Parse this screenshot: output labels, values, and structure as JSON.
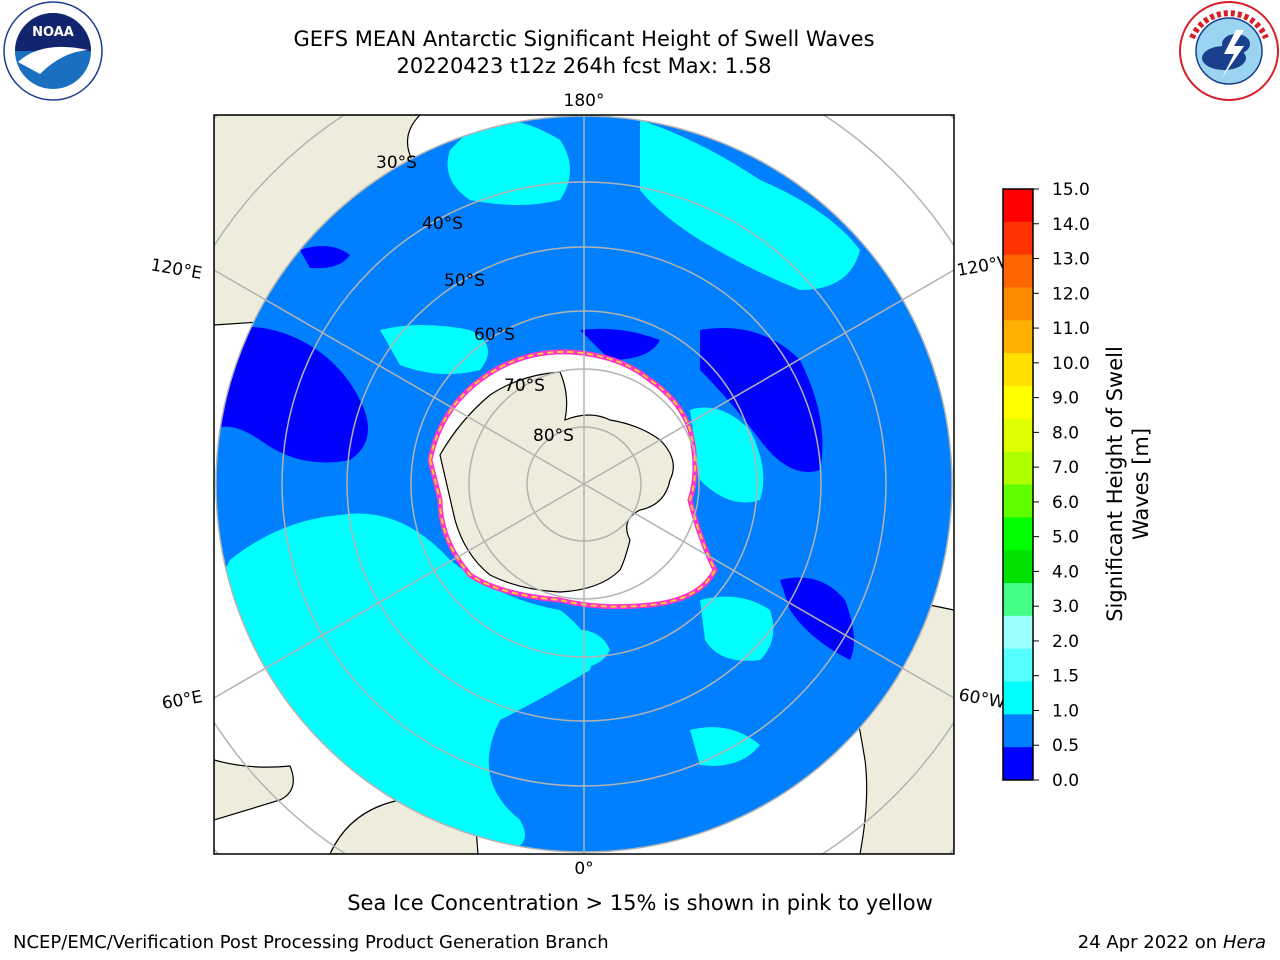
{
  "title": {
    "line1": "GEFS MEAN Antarctic Significant Height of Swell Waves",
    "line2": "20220423 t12z 264h fcst   Max: 1.58"
  },
  "logos": {
    "noaa": {
      "text": "NOAA",
      "ring_text": "NATIONAL OCEANIC AND ATMOSPHERIC ADMINISTRATION · U.S. DEPARTMENT OF COMMERCE"
    },
    "nws": {
      "ring_text": "NATIONAL WEATHER SERVICE"
    }
  },
  "map": {
    "projection": "south-polar-stereographic",
    "longitude_labels": {
      "top": "180°",
      "bottom": "0°",
      "left_upper": "120°E",
      "left_lower": "60°E",
      "right_upper": "120°W",
      "right_lower": "60°W"
    },
    "latitude_labels": [
      "30°S",
      "40°S",
      "50°S",
      "60°S",
      "70°S",
      "80°S"
    ],
    "colors": {
      "land": "#eeecdc",
      "ocean_low": "#0000ff",
      "ocean_mid": "#0080ff",
      "ocean_high": "#00ffff",
      "sea_ice": "#ffffff",
      "ice_edge_pink": "#ff33cc",
      "ice_edge_yellow": "#ffcc33",
      "graticule": "#b3b3b3"
    }
  },
  "colorbar": {
    "label_line1": "Significant Height of Swell",
    "label_line2": "Waves [m]",
    "ticks": [
      "15.0",
      "14.0",
      "13.0",
      "12.0",
      "11.0",
      "10.0",
      "9.0",
      "8.0",
      "7.0",
      "6.0",
      "5.0",
      "4.0",
      "3.0",
      "2.0",
      "1.5",
      "1.0",
      "0.5",
      "0.0"
    ],
    "bands": [
      "#ff0000",
      "#ff3300",
      "#ff6600",
      "#ff8c00",
      "#ffb000",
      "#ffe000",
      "#ffff00",
      "#e0ff00",
      "#b0ff00",
      "#60ff00",
      "#00ff00",
      "#00e000",
      "#44ff88",
      "#99ffff",
      "#55ffff",
      "#00ffff",
      "#0080ff",
      "#0000ff"
    ]
  },
  "note": "Sea Ice Concentration > 15% is shown in pink to yellow",
  "footer": {
    "left": "NCEP/EMC/Verification Post Processing Product Generation Branch",
    "right_date": "24 Apr 2022 on ",
    "right_system": "Hera"
  }
}
